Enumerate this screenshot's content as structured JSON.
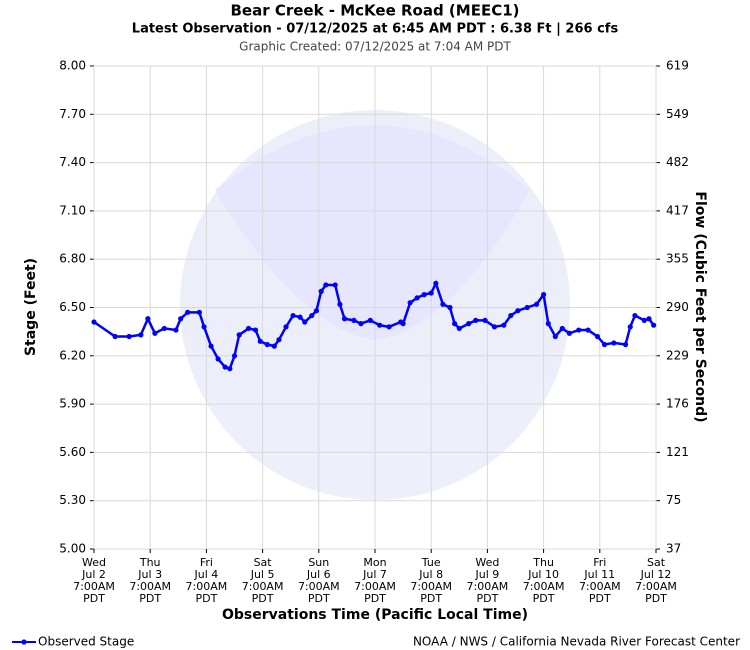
{
  "chart_data": {
    "type": "line",
    "title": "Bear Creek - McKee Road (MEEC1)",
    "subtitle": "Latest Observation - 07/12/2025 at 6:45 AM PDT : 6.38 Ft | 266 cfs",
    "created": "Graphic Created: 07/12/2025 at 7:04 AM PDT",
    "ylabel": "Stage (Feet)",
    "y2label": "Flow (Cubic Feet per Second)",
    "xlabel": "Observations Time (Pacific Local Time)",
    "credit": "NOAA / NWS / California Nevada River Forecast Center",
    "grid": true,
    "xlim": [
      0,
      240
    ],
    "xticks": [
      {
        "value": 0,
        "label": [
          "Wed",
          "Jul 2",
          "7:00AM",
          "PDT"
        ]
      },
      {
        "value": 24,
        "label": [
          "Thu",
          "Jul 3",
          "7:00AM",
          "PDT"
        ]
      },
      {
        "value": 48,
        "label": [
          "Fri",
          "Jul 4",
          "7:00AM",
          "PDT"
        ]
      },
      {
        "value": 72,
        "label": [
          "Sat",
          "Jul 5",
          "7:00AM",
          "PDT"
        ]
      },
      {
        "value": 96,
        "label": [
          "Sun",
          "Jul 6",
          "7:00AM",
          "PDT"
        ]
      },
      {
        "value": 120,
        "label": [
          "Mon",
          "Jul 7",
          "7:00AM",
          "PDT"
        ]
      },
      {
        "value": 144,
        "label": [
          "Tue",
          "Jul 8",
          "7:00AM",
          "PDT"
        ]
      },
      {
        "value": 168,
        "label": [
          "Wed",
          "Jul 9",
          "7:00AM",
          "PDT"
        ]
      },
      {
        "value": 192,
        "label": [
          "Thu",
          "Jul 10",
          "7:00AM",
          "PDT"
        ]
      },
      {
        "value": 216,
        "label": [
          "Fri",
          "Jul 11",
          "7:00AM",
          "PDT"
        ]
      },
      {
        "value": 240,
        "label": [
          "Sat",
          "Jul 12",
          "7:00AM",
          "PDT"
        ]
      }
    ],
    "ylim": [
      5,
      8
    ],
    "yticks": [
      {
        "value": 5,
        "label": "5.00"
      },
      {
        "value": 5.3,
        "label": "5.30"
      },
      {
        "value": 5.6,
        "label": "5.60"
      },
      {
        "value": 5.9,
        "label": "5.90"
      },
      {
        "value": 6.2,
        "label": "6.20"
      },
      {
        "value": 6.5,
        "label": "6.50"
      },
      {
        "value": 6.8,
        "label": "6.80"
      },
      {
        "value": 7.1,
        "label": "7.10"
      },
      {
        "value": 7.4,
        "label": "7.40"
      },
      {
        "value": 7.7,
        "label": "7.70"
      },
      {
        "value": 8,
        "label": "8.00"
      }
    ],
    "y2ticks": [
      37,
      75,
      121,
      176,
      229,
      290,
      355,
      417,
      482,
      549,
      619
    ],
    "legend": "bottom-left",
    "series": [
      {
        "name": "Observed Stage",
        "color": "#0000ff",
        "x": [
          0,
          9,
          15,
          20,
          23,
          26,
          30,
          35,
          37,
          40,
          45,
          47,
          50,
          53,
          56,
          58,
          60,
          62,
          66,
          69,
          71,
          74,
          77,
          79,
          82,
          85,
          88,
          90,
          93,
          95,
          97,
          99,
          103,
          105,
          107,
          111,
          114,
          118,
          122,
          126,
          131,
          132,
          135,
          138,
          141,
          144,
          146,
          149,
          152,
          154,
          156,
          160,
          163,
          167,
          171,
          175,
          178,
          181,
          185,
          189,
          192,
          194,
          197,
          200,
          203,
          207,
          211,
          215,
          218,
          222,
          227,
          229,
          231,
          235,
          237,
          239
        ],
        "values": [
          6.41,
          6.32,
          6.32,
          6.33,
          6.43,
          6.34,
          6.37,
          6.36,
          6.43,
          6.47,
          6.47,
          6.38,
          6.26,
          6.18,
          6.13,
          6.12,
          6.2,
          6.33,
          6.37,
          6.36,
          6.29,
          6.27,
          6.26,
          6.3,
          6.38,
          6.45,
          6.44,
          6.41,
          6.45,
          6.48,
          6.6,
          6.64,
          6.64,
          6.52,
          6.43,
          6.42,
          6.4,
          6.42,
          6.39,
          6.38,
          6.41,
          6.4,
          6.53,
          6.56,
          6.58,
          6.59,
          6.65,
          6.52,
          6.5,
          6.4,
          6.37,
          6.4,
          6.42,
          6.42,
          6.38,
          6.39,
          6.45,
          6.48,
          6.5,
          6.52,
          6.58,
          6.4,
          6.32,
          6.37,
          6.34,
          6.36,
          6.36,
          6.32,
          6.27,
          6.28,
          6.27,
          6.38,
          6.45,
          6.42,
          6.43,
          6.39
        ]
      }
    ]
  }
}
